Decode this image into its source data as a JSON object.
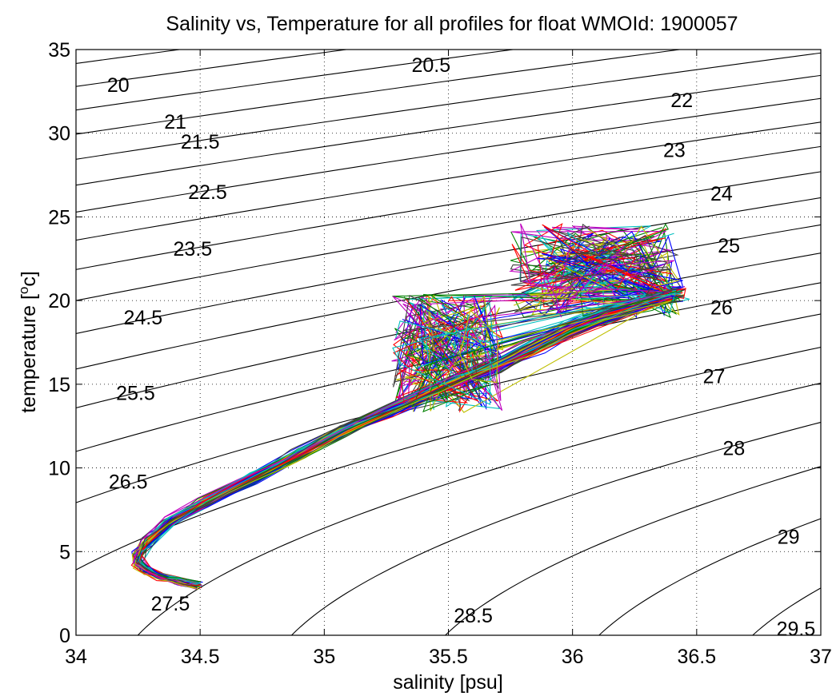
{
  "chart_data": {
    "type": "line",
    "title": "Salinity vs, Temperature for all profiles for float WMOId: 1900057",
    "xlabel": "salinity [psu]",
    "ylabel": "temperature [",
    "ylabel_sup": "o",
    "ylabel_end": "c]",
    "xlim": [
      34,
      37
    ],
    "ylim": [
      0,
      35
    ],
    "xticks": [
      "34",
      "34.5",
      "35",
      "35.5",
      "36",
      "36.5",
      "37"
    ],
    "yticks": [
      "0",
      "5",
      "10",
      "15",
      "20",
      "25",
      "30",
      "35"
    ],
    "grid": true,
    "contours": [
      {
        "label": "20",
        "levels": [
          20.0
        ],
        "label_at": [
          34.17,
          32.9
        ]
      },
      {
        "label": "20.5",
        "levels": [
          20.5
        ],
        "label_at": [
          35.43,
          34.1
        ]
      },
      {
        "label": "21",
        "levels": [
          21.0
        ],
        "label_at": [
          34.4,
          30.7
        ]
      },
      {
        "label": "21.5",
        "levels": [
          21.5
        ],
        "label_at": [
          34.5,
          29.5
        ]
      },
      {
        "label": "22",
        "levels": [
          22.0
        ],
        "label_at": [
          36.44,
          32.0
        ]
      },
      {
        "label": "22.5",
        "levels": [
          22.5
        ],
        "label_at": [
          34.53,
          26.5
        ]
      },
      {
        "label": "23",
        "levels": [
          23.0
        ],
        "label_at": [
          36.41,
          29.0
        ]
      },
      {
        "label": "23.5",
        "levels": [
          23.5
        ],
        "label_at": [
          34.47,
          23.1
        ]
      },
      {
        "label": "24",
        "levels": [
          24.0
        ],
        "label_at": [
          36.6,
          26.4
        ]
      },
      {
        "label": "24.5",
        "levels": [
          24.5
        ],
        "label_at": [
          34.27,
          19.0
        ]
      },
      {
        "label": "25",
        "levels": [
          25.0
        ],
        "label_at": [
          36.63,
          23.3
        ]
      },
      {
        "label": "25.5",
        "levels": [
          25.5
        ],
        "label_at": [
          34.24,
          14.5
        ]
      },
      {
        "label": "26",
        "levels": [
          26.0
        ],
        "label_at": [
          36.6,
          19.6
        ]
      },
      {
        "label": "26.5",
        "levels": [
          26.5
        ],
        "label_at": [
          34.21,
          9.2
        ]
      },
      {
        "label": "27",
        "levels": [
          27.0
        ],
        "label_at": [
          36.57,
          15.5
        ]
      },
      {
        "label": "27.5",
        "levels": [
          27.5
        ],
        "label_at": [
          34.38,
          1.9
        ]
      },
      {
        "label": "28",
        "levels": [
          28.0
        ],
        "label_at": [
          36.65,
          11.2
        ]
      },
      {
        "label": "28.5",
        "levels": [
          28.5
        ],
        "label_at": [
          35.6,
          1.2
        ]
      },
      {
        "label": "29",
        "levels": [
          29.0
        ],
        "label_at": [
          36.87,
          5.9
        ]
      },
      {
        "label": "29.5",
        "levels": [
          29.5
        ],
        "label_at": [
          36.9,
          0.4
        ]
      }
    ],
    "background_isopycnals": [
      19.5,
      20.0,
      20.5,
      21.0,
      21.5,
      22.0,
      22.5,
      23.0,
      23.5,
      24.0,
      24.5,
      25.0,
      25.5,
      26.0,
      26.5,
      27.0,
      27.5,
      28.0,
      28.5,
      29.0,
      29.5
    ],
    "series_colors": [
      "#0000ff",
      "#008000",
      "#ff0000",
      "#00bfbf",
      "#bf00bf",
      "#bfbf00",
      "#404040"
    ],
    "profile_count": 70,
    "mean_profile": {
      "s": [
        34.49,
        34.42,
        34.35,
        34.29,
        34.25,
        34.25,
        34.29,
        34.38,
        34.52,
        34.72,
        34.9,
        35.08,
        35.28,
        35.48,
        35.68,
        35.85,
        36.0,
        36.15,
        36.3,
        36.42
      ],
      "t": [
        3.0,
        3.2,
        3.5,
        3.9,
        4.3,
        4.8,
        5.6,
        6.8,
        7.9,
        9.4,
        10.8,
        12.2,
        13.5,
        14.8,
        16.0,
        17.2,
        18.3,
        19.2,
        19.9,
        20.4
      ]
    },
    "surface_scatter_regions": [
      {
        "s_range": [
          35.27,
          35.72
        ],
        "t_range": [
          13.3,
          20.4
        ]
      },
      {
        "s_range": [
          35.75,
          36.45
        ],
        "t_range": [
          19.0,
          24.6
        ]
      }
    ]
  }
}
